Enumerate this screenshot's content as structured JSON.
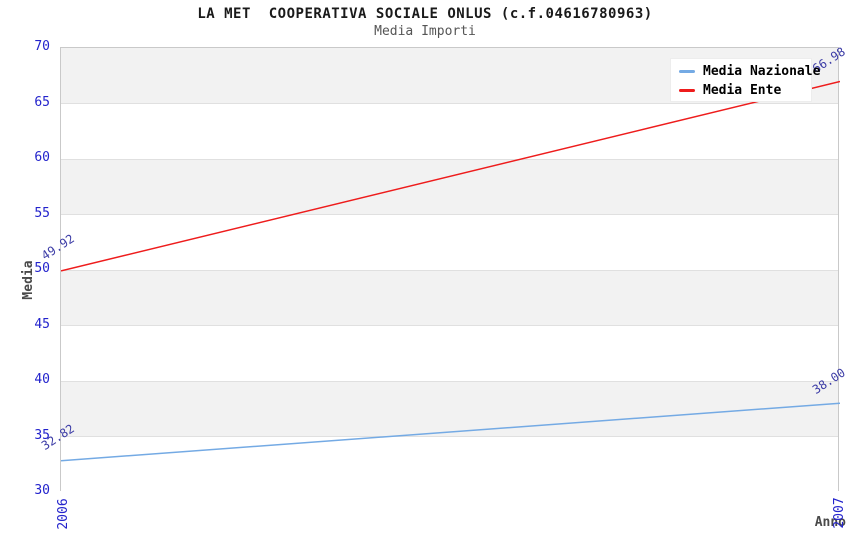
{
  "chart_data": {
    "type": "line",
    "title": "LA MET  COOPERATIVA SOCIALE ONLUS (c.f.04616780963)",
    "subtitle": "Media Importi",
    "xlabel": "Anno",
    "ylabel": "Media",
    "x": [
      "2006",
      "2007"
    ],
    "ylim": [
      30,
      70
    ],
    "ytick_step": 5,
    "yticks": [
      30,
      35,
      40,
      45,
      50,
      55,
      60,
      65,
      70
    ],
    "grid": true,
    "legend_position": "top-right",
    "series": [
      {
        "name": "Media Nazionale",
        "color": "#74aae4",
        "values": [
          32.82,
          38.0
        ],
        "point_labels": [
          "32.82",
          "38.00"
        ]
      },
      {
        "name": "Media Ente",
        "color": "#ee1c1c",
        "values": [
          49.92,
          66.98
        ],
        "point_labels": [
          "49.92",
          "66.98"
        ]
      }
    ]
  },
  "colors": {
    "tick_label": "#2323cc",
    "point_label": "#3c3ca6",
    "axis_title": "#4a4a4a",
    "band_shaded": "#f2f2f2",
    "band_plain": "#ffffff",
    "grid_line": "#e0e0e0",
    "plot_border": "#c9c9c9",
    "title": "#1a1a1a",
    "subtitle": "#555555"
  }
}
